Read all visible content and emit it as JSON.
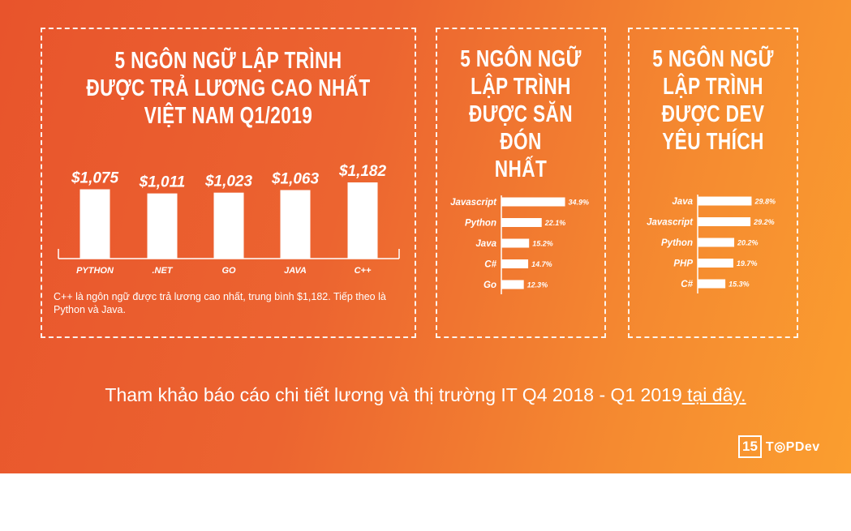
{
  "chart_data": [
    {
      "type": "bar",
      "title": "5 NGÔN NGỮ LẬP TRÌNH\nĐƯỢC TRẢ LƯƠNG CAO NHẤT\nVIỆT NAM Q1/2019",
      "categories": [
        "PYTHON",
        ".NET",
        "GO",
        "JAVA",
        "C++"
      ],
      "values": [
        1075,
        1011,
        1023,
        1063,
        1182
      ],
      "data_labels": [
        "$1,075",
        "$1,011",
        "$1,023",
        "$1,063",
        "$1,182"
      ],
      "ylim": [
        0,
        1250
      ],
      "grid": false
    },
    {
      "type": "bar",
      "orientation": "horizontal",
      "title": "5 NGÔN NGỮ\nLẬP TRÌNH\nĐƯỢC SĂN ĐÓN\nNHẤT",
      "categories": [
        "Javascript",
        "Python",
        "Java",
        "C#",
        "Go"
      ],
      "values": [
        34.9,
        22.1,
        15.2,
        14.7,
        12.3
      ],
      "data_labels": [
        "34.9%",
        "22.1%",
        "15.2%",
        "14.7%",
        "12.3%"
      ],
      "xlim": [
        0,
        40
      ],
      "grid": false
    },
    {
      "type": "bar",
      "orientation": "horizontal",
      "title": "5 NGÔN NGỮ\nLẬP TRÌNH\nĐƯỢC DEV\nYÊU THÍCH",
      "categories": [
        "Java",
        "Javascript",
        "Python",
        "PHP",
        "C#"
      ],
      "values": [
        29.8,
        29.2,
        20.2,
        19.7,
        15.3
      ],
      "data_labels": [
        "29.8%",
        "29.2%",
        "20.2%",
        "19.7%",
        "15.3%"
      ],
      "xlim": [
        0,
        40
      ],
      "grid": false
    }
  ],
  "note": "C++ là ngôn ngữ được trả lương cao nhất, trung bình $1,182. Tiếp theo là Python và Java.",
  "footer": {
    "text": "Tham khảo báo cáo chi tiết lương và thị trường IT Q4 2018 - Q1 2019",
    "link": " tại đây."
  },
  "logo": {
    "badge": "15",
    "text": "T◎PDev"
  },
  "colors": {
    "background_start": "#e8542c",
    "background_end": "#fb9e2f",
    "foreground": "#ffffff"
  }
}
